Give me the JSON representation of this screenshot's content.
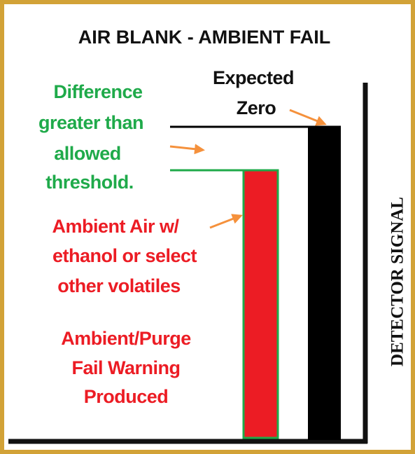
{
  "title": "AIR BLANK - AMBIENT FAIL",
  "axis_label": "DETECTOR SIGNAL",
  "expected_label": [
    "Expected",
    "Zero"
  ],
  "difference_label": [
    "Difference",
    "greater than",
    "allowed",
    "threshold."
  ],
  "ambient_label": [
    "Ambient Air w/",
    "ethanol or select",
    "other volatiles"
  ],
  "warning_label": [
    "Ambient/Purge",
    "Fail Warning",
    "Produced"
  ]
}
